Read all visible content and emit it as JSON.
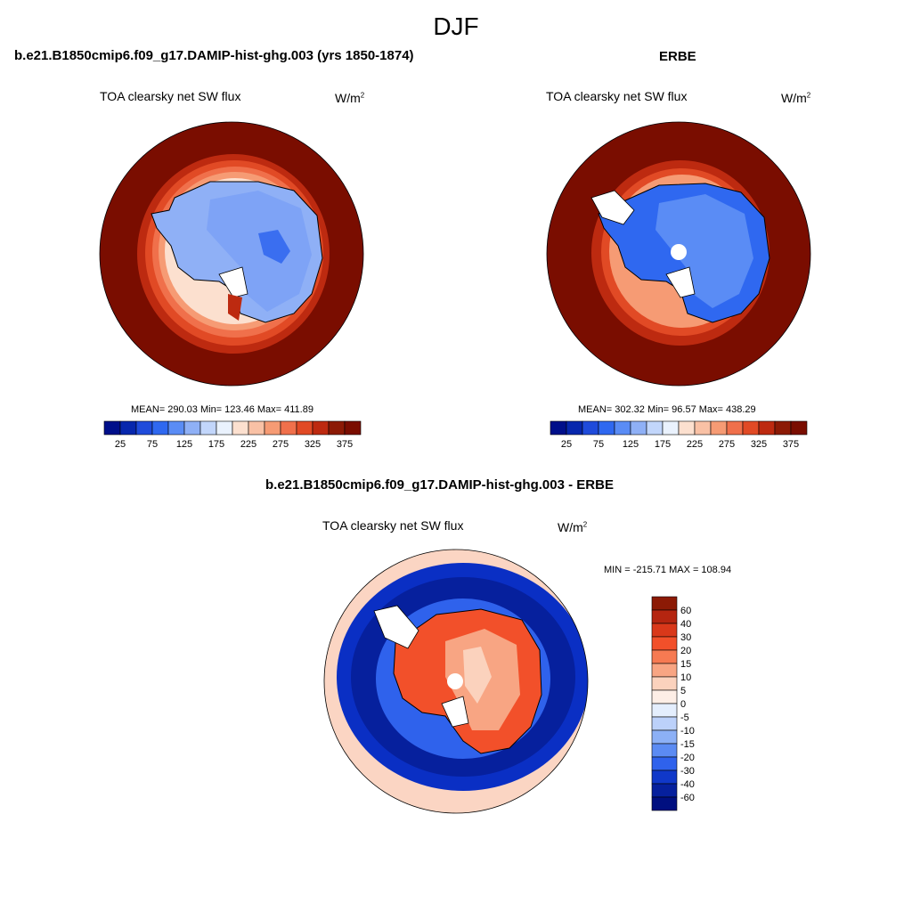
{
  "figure": {
    "season": "DJF"
  },
  "panels": {
    "model": {
      "title": "b.e21.B1850cmip6.f09_g17.DAMIP-hist-ghg.003 (yrs 1850-1874)",
      "variable": "TOA clearsky net SW flux",
      "units": "W/m",
      "units_sup": "2",
      "stats": "MEAN= 290.03  Min= 123.46  Max= 411.89",
      "colorbar": {
        "colors": [
          "#000f8a",
          "#0727ad",
          "#1f4bdb",
          "#2f68f0",
          "#5a8cf5",
          "#8fb0f6",
          "#c2d6fb",
          "#eaf2fd",
          "#fce0cf",
          "#f9c1a5",
          "#f69b74",
          "#f0704b",
          "#e14a25",
          "#bd2a10",
          "#8c1a05",
          "#7a0d00"
        ],
        "ticks": [
          "25",
          "75",
          "125",
          "175",
          "225",
          "275",
          "325",
          "375"
        ]
      }
    },
    "obs": {
      "title": "ERBE",
      "variable": "TOA clearsky net SW flux",
      "units": "W/m",
      "units_sup": "2",
      "stats": "MEAN= 302.32  Min=  96.57  Max= 438.29",
      "colorbar": {
        "colors": [
          "#000f8a",
          "#0727ad",
          "#1f4bdb",
          "#2f68f0",
          "#5a8cf5",
          "#8fb0f6",
          "#c2d6fb",
          "#eaf2fd",
          "#fce0cf",
          "#f9c1a5",
          "#f69b74",
          "#f0704b",
          "#e14a25",
          "#bd2a10",
          "#8c1a05",
          "#7a0d00"
        ],
        "ticks": [
          "25",
          "75",
          "125",
          "175",
          "225",
          "275",
          "325",
          "375"
        ]
      }
    },
    "diff": {
      "title": "b.e21.B1850cmip6.f09_g17.DAMIP-hist-ghg.003 - ERBE",
      "variable": "TOA clearsky net SW flux",
      "units": "W/m",
      "units_sup": "2",
      "minmax": "MIN = -215.71 MAX = 108.94",
      "colorbar": {
        "levels": [
          "60",
          "40",
          "30",
          "20",
          "15",
          "10",
          "5",
          "0",
          "-5",
          "-10",
          "-15",
          "-20",
          "-30",
          "-40",
          "-60"
        ],
        "colors": [
          "#8c1a05",
          "#b52510",
          "#d9381a",
          "#f2502a",
          "#f67a52",
          "#f8a583",
          "#fbd2bd",
          "#fdeee6",
          "#e4eefd",
          "#bcd1fa",
          "#8cb0f6",
          "#5b8bf3",
          "#2f62ec",
          "#1038c9",
          "#06209d",
          "#000f80"
        ]
      }
    }
  },
  "colors": {
    "dark_red": "#7a0d00",
    "land_blue_light": "#8fb0f6",
    "land_blue": "#5a8cf5",
    "ocean_blue": "#0a2fc4",
    "pale": "#fbd5c3"
  }
}
